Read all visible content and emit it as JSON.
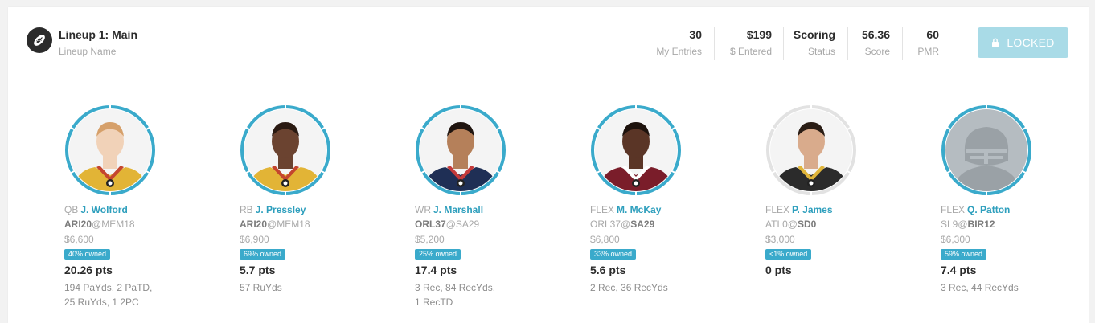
{
  "lineup": {
    "title": "Lineup 1: Main",
    "subtitle": "Lineup Name",
    "stats": [
      {
        "value": "30",
        "label": "My Entries"
      },
      {
        "value": "$199",
        "label": "$ Entered"
      },
      {
        "value": "Scoring",
        "label": "Status"
      },
      {
        "value": "56.36",
        "label": "Score"
      },
      {
        "value": "60",
        "label": "PMR"
      }
    ],
    "locked_label": "LOCKED"
  },
  "players": [
    {
      "pos": "QB",
      "name": "J. Wolford",
      "team": "ARI20",
      "at": "@",
      "opp": "MEM18",
      "bold": "team",
      "salary": "$6,600",
      "owned": "40% owned",
      "pts": "20.26 pts",
      "stats1": "194 PaYds, 2 PaTD,",
      "stats2": "25 RuYds, 1 2PC",
      "jersey": "#e2b436",
      "trim": "#c4452e",
      "skin": "#f1d2b8",
      "hair": "#d6a06a",
      "ring": "full"
    },
    {
      "pos": "RB",
      "name": "J. Pressley",
      "team": "ARI20",
      "at": "@",
      "opp": "MEM18",
      "bold": "team",
      "salary": "$6,900",
      "owned": "69% owned",
      "pts": "5.7 pts",
      "stats1": "57 RuYds",
      "stats2": "",
      "jersey": "#e2b436",
      "trim": "#c4452e",
      "skin": "#6b4330",
      "hair": "#2a1a12",
      "ring": "full"
    },
    {
      "pos": "WR",
      "name": "J. Marshall",
      "team": "ORL37",
      "at": "@",
      "opp": "SA29",
      "bold": "team",
      "salary": "$5,200",
      "owned": "25% owned",
      "pts": "17.4 pts",
      "stats1": "3 Rec, 84 RecYds,",
      "stats2": "1 RecTD",
      "jersey": "#1f2f55",
      "trim": "#c43a3a",
      "skin": "#b5805a",
      "hair": "#201510",
      "ring": "full"
    },
    {
      "pos": "FLEX",
      "name": "M. McKay",
      "team": "ORL37",
      "at": "@",
      "opp": "SA29",
      "bold": "opp",
      "salary": "$6,800",
      "owned": "33% owned",
      "pts": "5.6 pts",
      "stats1": "2 Rec, 36 RecYds",
      "stats2": "",
      "jersey": "#7a1d2a",
      "trim": "#ffffff",
      "skin": "#5a3526",
      "hair": "#1d120d",
      "ring": "full"
    },
    {
      "pos": "FLEX",
      "name": "P. James",
      "team": "ATL0",
      "at": "@",
      "opp": "SD0",
      "bold": "opp",
      "salary": "$3,000",
      "owned": "<1% owned",
      "pts": "0 pts",
      "stats1": "",
      "stats2": "",
      "jersey": "#2b2b2b",
      "trim": "#e0b53a",
      "skin": "#d9ab8c",
      "hair": "#2a1d15",
      "ring": "empty"
    },
    {
      "pos": "FLEX",
      "name": "Q. Patton",
      "team": "SL9",
      "at": "@",
      "opp": "BIR12",
      "bold": "opp",
      "salary": "$6,300",
      "owned": "59% owned",
      "pts": "7.4 pts",
      "stats1": "3 Rec, 44 RecYds",
      "stats2": "",
      "jersey": "",
      "trim": "",
      "skin": "",
      "hair": "",
      "ring": "full",
      "placeholder": true
    }
  ],
  "colors": {
    "accent": "#3aaacb",
    "locked_bg": "#a9dbe7"
  }
}
